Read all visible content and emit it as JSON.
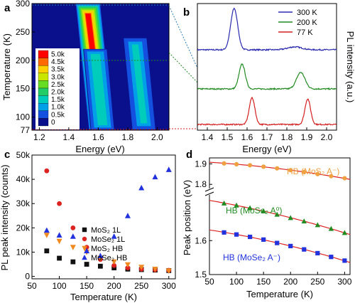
{
  "panels": {
    "a": {
      "label": "a",
      "chart_data": {
        "type": "heatmap",
        "xlabel": "Energy (eV)",
        "ylabel": "Temperature (K)",
        "xlim": [
          1.15,
          2.08
        ],
        "ylim": [
          77,
          300
        ],
        "xticks": [
          "1.2",
          "1.4",
          "1.6",
          "1.8",
          "2.0"
        ],
        "xtick_values": [
          1.2,
          1.4,
          1.6,
          1.8,
          2.0
        ],
        "yticks": [
          "300",
          "250",
          "200",
          "150",
          "100",
          "77"
        ],
        "ytick_values": [
          300,
          250,
          200,
          150,
          100,
          77
        ],
        "colorbar": {
          "labels": [
            "5.0k",
            "4.5k",
            "3.5k",
            "3.0k",
            "2.5k",
            "2.0k",
            "1.5k",
            "1.0k",
            "0.5k",
            "0"
          ],
          "colors": [
            "#ff0000",
            "#ff6a00",
            "#ffd000",
            "#c8e600",
            "#66dd22",
            "#22cc66",
            "#00ccbb",
            "#00a0e8",
            "#1450e0",
            "#0a108c"
          ]
        },
        "features": [
          {
            "energy_start": 1.53,
            "energy_end": 1.62,
            "t_start": 300,
            "t_end": 77,
            "level": 0.95
          },
          {
            "energy_start": 1.58,
            "energy_end": 1.63,
            "t_start": 220,
            "t_end": 77,
            "level": 0.35
          },
          {
            "energy_start": 1.85,
            "energy_end": 1.91,
            "t_start": 240,
            "t_end": 77,
            "level": 0.3
          }
        ],
        "guide_lines_K": [
          300,
          200,
          77
        ]
      }
    },
    "b": {
      "label": "b",
      "chart_data": {
        "type": "line",
        "xlabel": "Energy (eV)",
        "ylabel": "PL intensity (a.u.)",
        "xlim": [
          1.35,
          2.05
        ],
        "xticks": [
          "1.4",
          "1.5",
          "1.6",
          "1.7",
          "1.8",
          "1.9",
          "2.0"
        ],
        "xtick_values": [
          1.4,
          1.5,
          1.6,
          1.7,
          1.8,
          1.9,
          2.0
        ],
        "series": [
          {
            "name": "300 K",
            "color": "#2a2ab0",
            "peaks": [
              {
                "e": 1.535,
                "h": 1.0,
                "w": 0.025
              },
              {
                "e": 1.84,
                "h": 0.07,
                "w": 0.05
              }
            ]
          },
          {
            "name": "200 K",
            "color": "#228b22",
            "peaks": [
              {
                "e": 1.575,
                "h": 0.6,
                "w": 0.022
              },
              {
                "e": 1.87,
                "h": 0.4,
                "w": 0.03
              }
            ]
          },
          {
            "name": "77 K",
            "color": "#d42020",
            "peaks": [
              {
                "e": 1.625,
                "h": 0.65,
                "w": 0.02
              },
              {
                "e": 1.905,
                "h": 0.62,
                "w": 0.02
              }
            ]
          }
        ]
      }
    },
    "c": {
      "label": "c",
      "chart_data": {
        "type": "scatter",
        "xlabel": "Temperature (K)",
        "ylabel": "PL peak intensity (counts)",
        "xlim": [
          50,
          312
        ],
        "ylim": [
          -1000,
          50000
        ],
        "xticks": [
          "50",
          "100",
          "150",
          "200",
          "250",
          "300"
        ],
        "xtick_values": [
          50,
          100,
          150,
          200,
          250,
          300
        ],
        "yticks": [
          "0",
          "10k",
          "20k",
          "30k",
          "40k",
          "50k"
        ],
        "ytick_values": [
          0,
          10000,
          20000,
          30000,
          40000,
          50000
        ],
        "x": [
          77,
          100,
          125,
          150,
          175,
          200,
          225,
          250,
          275,
          300
        ],
        "series": [
          {
            "name": "MoS₂ 1L",
            "color": "#111111",
            "marker": "square",
            "values": [
              10500,
              7500,
              6000,
              5000,
              4200,
              3500,
              3000,
              2800,
              2600,
              2400
            ]
          },
          {
            "name": "MoSe₂ 1L",
            "color": "#dd2222",
            "marker": "circle",
            "values": [
              43500,
              30000,
              20000,
              12000,
              7000,
              4500,
              3500,
              3000,
              2700,
              2500
            ]
          },
          {
            "name": "MoS₂ HB",
            "color": "#f08a20",
            "marker": "triangle-down",
            "values": [
              17000,
              14500,
              12000,
              10000,
              7500,
              6000,
              4800,
              3800,
              3000,
              2300
            ]
          },
          {
            "name": "MoSe₂ HB",
            "color": "#2233dd",
            "marker": "triangle-up",
            "values": [
              19000,
              17000,
              16500,
              10500,
              8500,
              16500,
              25000,
              36500,
              41000,
              44000
            ]
          }
        ],
        "legend": "lower-left"
      }
    },
    "d": {
      "label": "d",
      "chart_data": {
        "type": "scatter",
        "xlabel": "Temperature (K)",
        "ylabel": "Peak position (eV)",
        "xlim": [
          50,
          310
        ],
        "axis_break": true,
        "xticks": [
          "50",
          "100",
          "150",
          "200",
          "250",
          "300"
        ],
        "xtick_values": [
          50,
          100,
          150,
          200,
          250,
          300
        ],
        "yticks": [
          "1.9",
          "1.8",
          "1.6",
          "1.5"
        ],
        "ytick_values": [
          1.9,
          1.8,
          1.6,
          1.5
        ],
        "x": [
          77,
          100,
          125,
          150,
          175,
          200,
          225,
          250,
          275,
          300
        ],
        "series": [
          {
            "name": "HB (MoS₂ A⁻)",
            "color": "#f0a040",
            "marker": "circle",
            "values": [
              1.902,
              1.898,
              1.893,
              1.886,
              1.878,
              1.869,
              1.86,
              1.85,
              1.84,
              1.83
            ]
          },
          {
            "name": "HB (MoSe₂ A⁰)",
            "color": "#228b22",
            "marker": "triangle-up",
            "values": [
              1.71,
              1.704,
              1.696,
              1.687,
              1.677,
              1.667,
              1.657,
              1.646,
              1.635,
              1.623
            ]
          },
          {
            "name": "HB (MoSe₂ A⁻)",
            "color": "#2233dd",
            "marker": "square",
            "values": [
              1.624,
              1.618,
              1.611,
              1.603,
              1.593,
              1.584,
              1.574,
              1.563,
              1.552,
              1.541
            ]
          }
        ],
        "fit_color": "#dd2222"
      }
    }
  }
}
